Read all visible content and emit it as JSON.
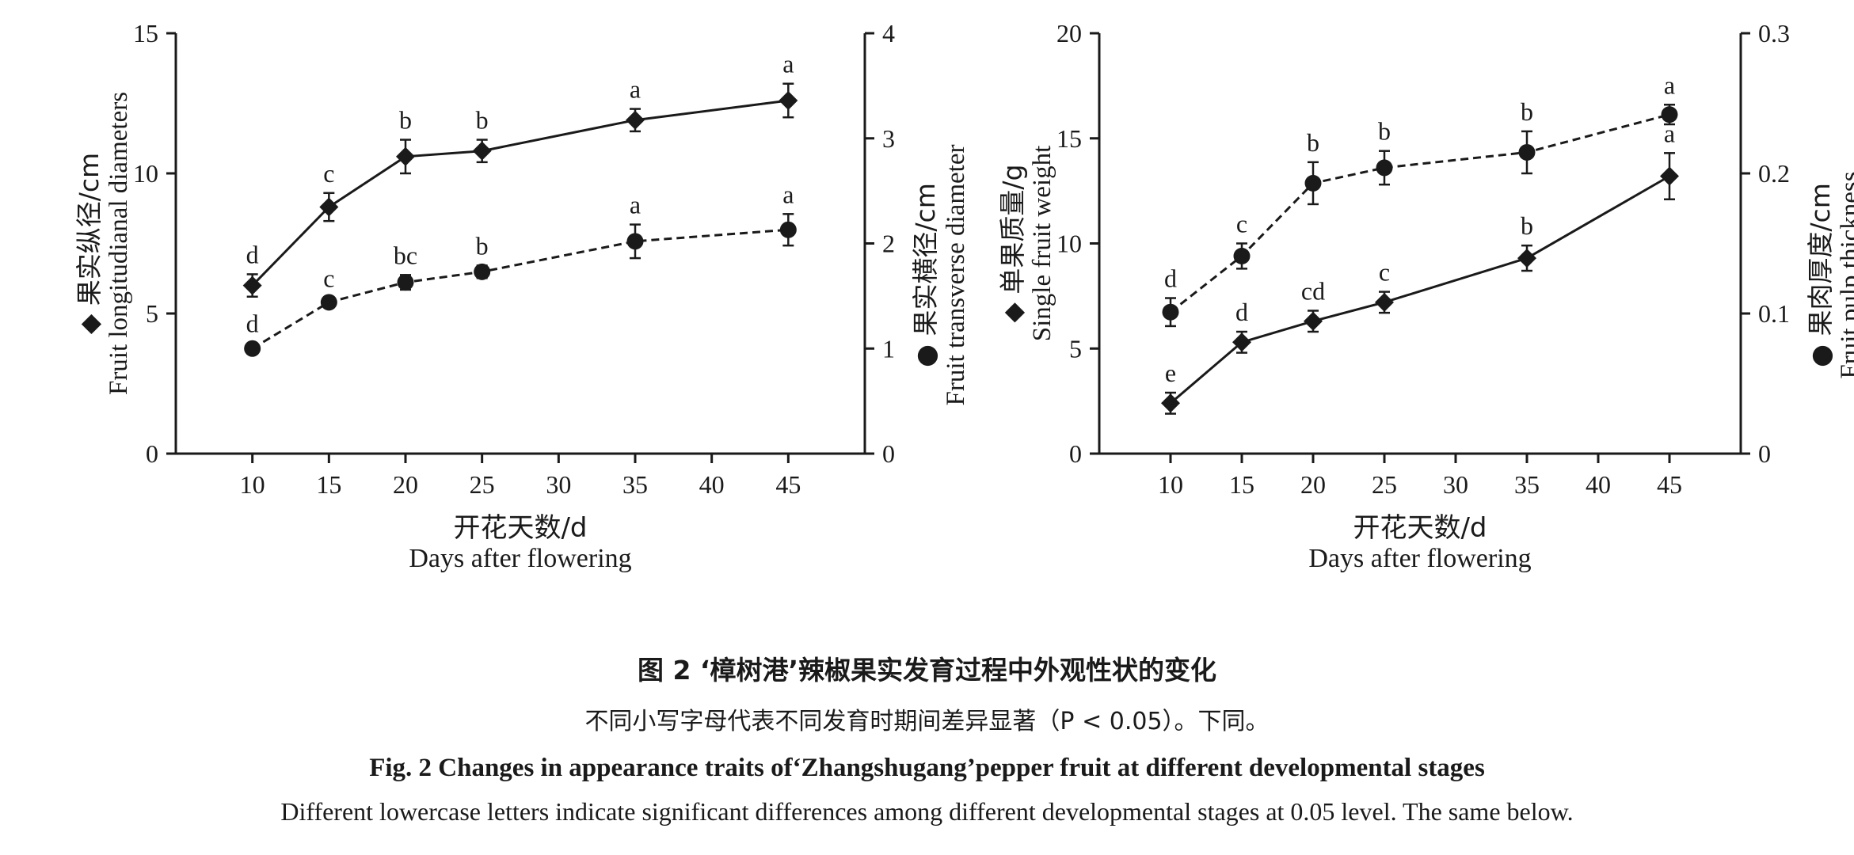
{
  "chart_data": [
    {
      "type": "line",
      "x": [
        10,
        15,
        20,
        25,
        35,
        45
      ],
      "xlim": [
        5,
        50
      ],
      "xticks": [
        "10",
        "15",
        "20",
        "25",
        "30",
        "35",
        "40",
        "45"
      ],
      "xlabel_cn": "开花天数/d",
      "xlabel_en": "Days after flowering",
      "ylabel_left_cn": "果实纵径/cm",
      "ylabel_left_en": "Fruit longitudianal diameters",
      "ylabel_right_cn": "果实横径/cm",
      "ylabel_right_en": "Fruit transverse diameter",
      "ylim_left": [
        0,
        15
      ],
      "yticks_left": [
        "0",
        "5",
        "10",
        "15"
      ],
      "ylim_right": [
        0,
        4
      ],
      "yticks_right": [
        "0",
        "1",
        "2",
        "3",
        "4"
      ],
      "marker_symbol_left": "◆",
      "marker_symbol_right": "●",
      "series": [
        {
          "axis": "left",
          "marker": "diamond",
          "line": "solid",
          "values": [
            6.0,
            8.8,
            10.6,
            10.8,
            11.9,
            12.6
          ],
          "errors": [
            0.4,
            0.5,
            0.6,
            0.4,
            0.4,
            0.6
          ],
          "letters": [
            "d",
            "c",
            "b",
            "b",
            "a",
            "a"
          ]
        },
        {
          "axis": "right",
          "marker": "circle",
          "line": "dashed",
          "values": [
            1.0,
            1.44,
            1.63,
            1.73,
            2.02,
            2.13
          ],
          "errors": [
            0.05,
            0.04,
            0.07,
            0.06,
            0.16,
            0.15
          ],
          "letters": [
            "d",
            "c",
            "bc",
            "b",
            "a",
            "a"
          ]
        }
      ]
    },
    {
      "type": "line",
      "x": [
        10,
        15,
        20,
        25,
        35,
        45
      ],
      "xlim": [
        5,
        50
      ],
      "xticks": [
        "10",
        "15",
        "20",
        "25",
        "30",
        "35",
        "40",
        "45"
      ],
      "xlabel_cn": "开花天数/d",
      "xlabel_en": "Days after flowering",
      "ylabel_left_cn": "单果质量/g",
      "ylabel_left_en": "Single fruit weight",
      "ylabel_right_cn": "果肉厚度/cm",
      "ylabel_right_en": "Fruit pulp thickness",
      "ylim_left": [
        0,
        20
      ],
      "yticks_left": [
        "0",
        "5",
        "10",
        "15",
        "20"
      ],
      "ylim_right": [
        0,
        0.3
      ],
      "yticks_right": [
        "0",
        "0.1",
        "0.2",
        "0.3"
      ],
      "marker_symbol_left": "◆",
      "marker_symbol_right": "●",
      "series": [
        {
          "axis": "left",
          "marker": "diamond",
          "line": "solid",
          "values": [
            2.4,
            5.3,
            6.3,
            7.2,
            9.3,
            13.2
          ],
          "errors": [
            0.5,
            0.5,
            0.5,
            0.5,
            0.6,
            1.1
          ],
          "letters": [
            "e",
            "d",
            "cd",
            "c",
            "b",
            "a"
          ]
        },
        {
          "axis": "right",
          "marker": "circle",
          "line": "dashed",
          "values": [
            0.101,
            0.141,
            0.193,
            0.204,
            0.215,
            0.242
          ],
          "errors": [
            0.01,
            0.009,
            0.015,
            0.012,
            0.015,
            0.007
          ],
          "letters": [
            "d",
            "c",
            "b",
            "b",
            "b",
            "a"
          ]
        }
      ]
    }
  ],
  "caption": {
    "cn_title": "图 2 ‘樟树港’辣椒果实发育过程中外观性状的变化",
    "cn_note": "不同小写字母代表不同发育时期间差异显著（P < 0.05）。下同。",
    "en_title": "Fig. 2    Changes in appearance traits of‘Zhangshugang’pepper fruit at different developmental stages",
    "en_note": "Different lowercase letters indicate significant differences among different developmental stages at 0.05 level. The same below."
  },
  "colors": {
    "ink": "#1a1a1a"
  }
}
